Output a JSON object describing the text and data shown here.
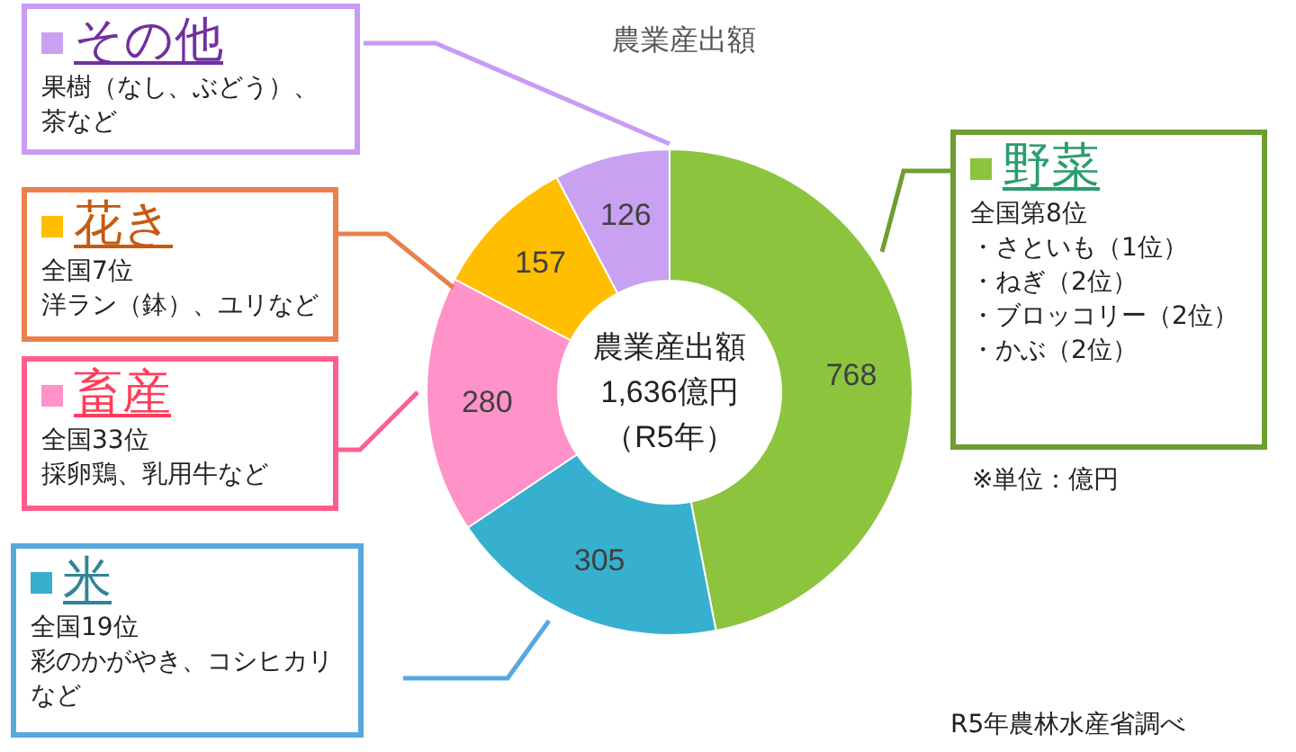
{
  "chart_data": {
    "type": "donut",
    "title": "農業産出額",
    "categories": [
      "野菜",
      "米",
      "畜産",
      "花き",
      "その他"
    ],
    "values": [
      768,
      305,
      280,
      157,
      126
    ],
    "colors": [
      "#8cc43e",
      "#37b0d0",
      "#ff92c8",
      "#ffbf00",
      "#c8a2f0"
    ],
    "data_labels": true,
    "legend": "left",
    "annotations": [
      "全国第8位",
      "・さといも（1位）",
      "・ねぎ（2位）",
      "・ブロッコリー（2位）",
      "・かぶ（2位）",
      "全国19位",
      "彩のかがやき、コシヒカリなど",
      "全国33位",
      "採卵鶏、乳用牛など",
      "全国7位",
      "洋ラン（鉢）、ユリなど",
      "果樹（なし、ぶどう）、茶など",
      "農業産出額",
      "1,636億円",
      "（R5年）",
      "※単位：億円",
      "R5年農林水産省調べ"
    ]
  }
}
